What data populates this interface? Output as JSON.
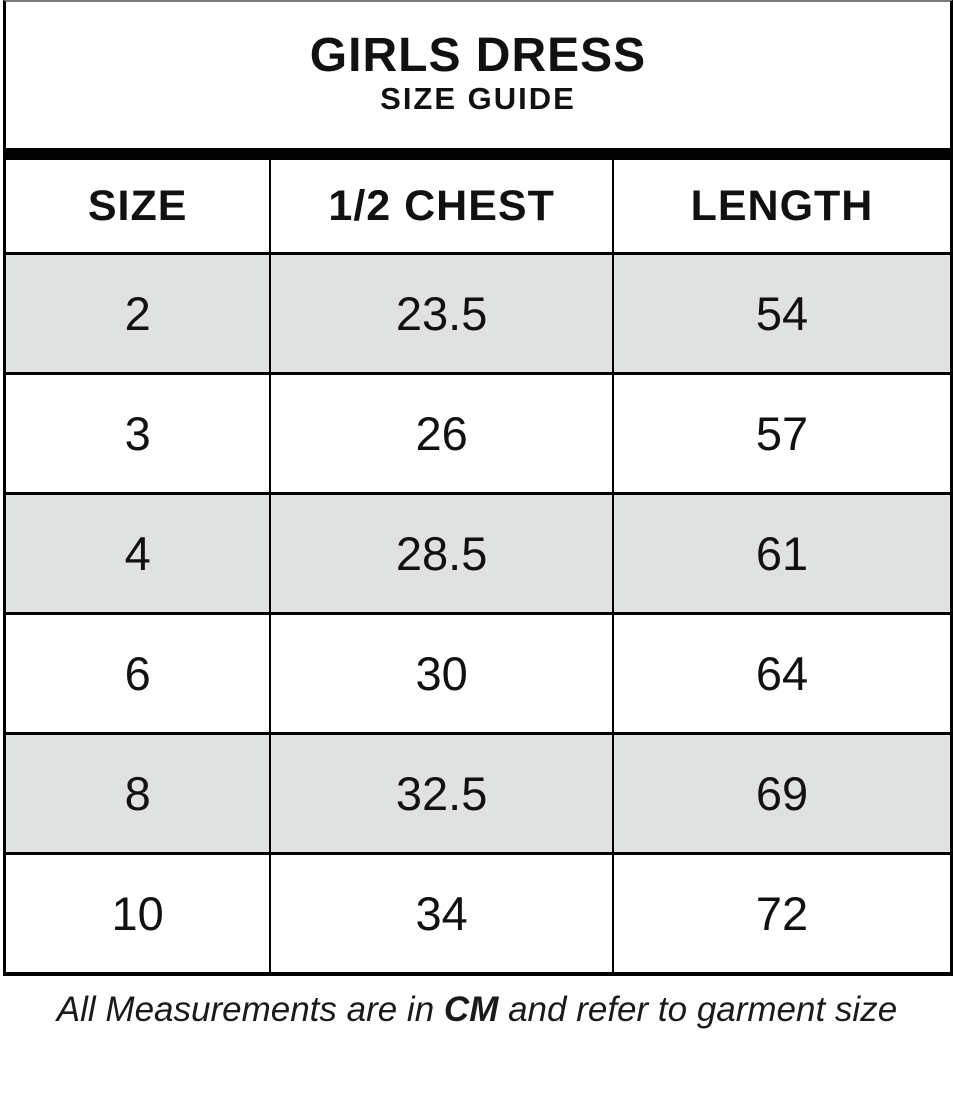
{
  "header": {
    "title": "GIRLS DRESS",
    "subtitle": "SIZE GUIDE"
  },
  "table": {
    "columns": [
      "SIZE",
      "1/2 CHEST",
      "LENGTH"
    ],
    "rows": [
      {
        "size": "2",
        "chest": "23.5",
        "length": "54"
      },
      {
        "size": "3",
        "chest": "26",
        "length": "57"
      },
      {
        "size": "4",
        "chest": "28.5",
        "length": "61"
      },
      {
        "size": "6",
        "chest": "30",
        "length": "64"
      },
      {
        "size": "8",
        "chest": "32.5",
        "length": "69"
      },
      {
        "size": "10",
        "chest": "34",
        "length": "72"
      }
    ]
  },
  "footer": {
    "prefix": "All Measurements are in",
    "unit": "CM",
    "suffix": "and refer to garment size"
  },
  "colors": {
    "row_shade": "#e0e1e1",
    "grid_line": "#000000",
    "text": "#111111"
  }
}
